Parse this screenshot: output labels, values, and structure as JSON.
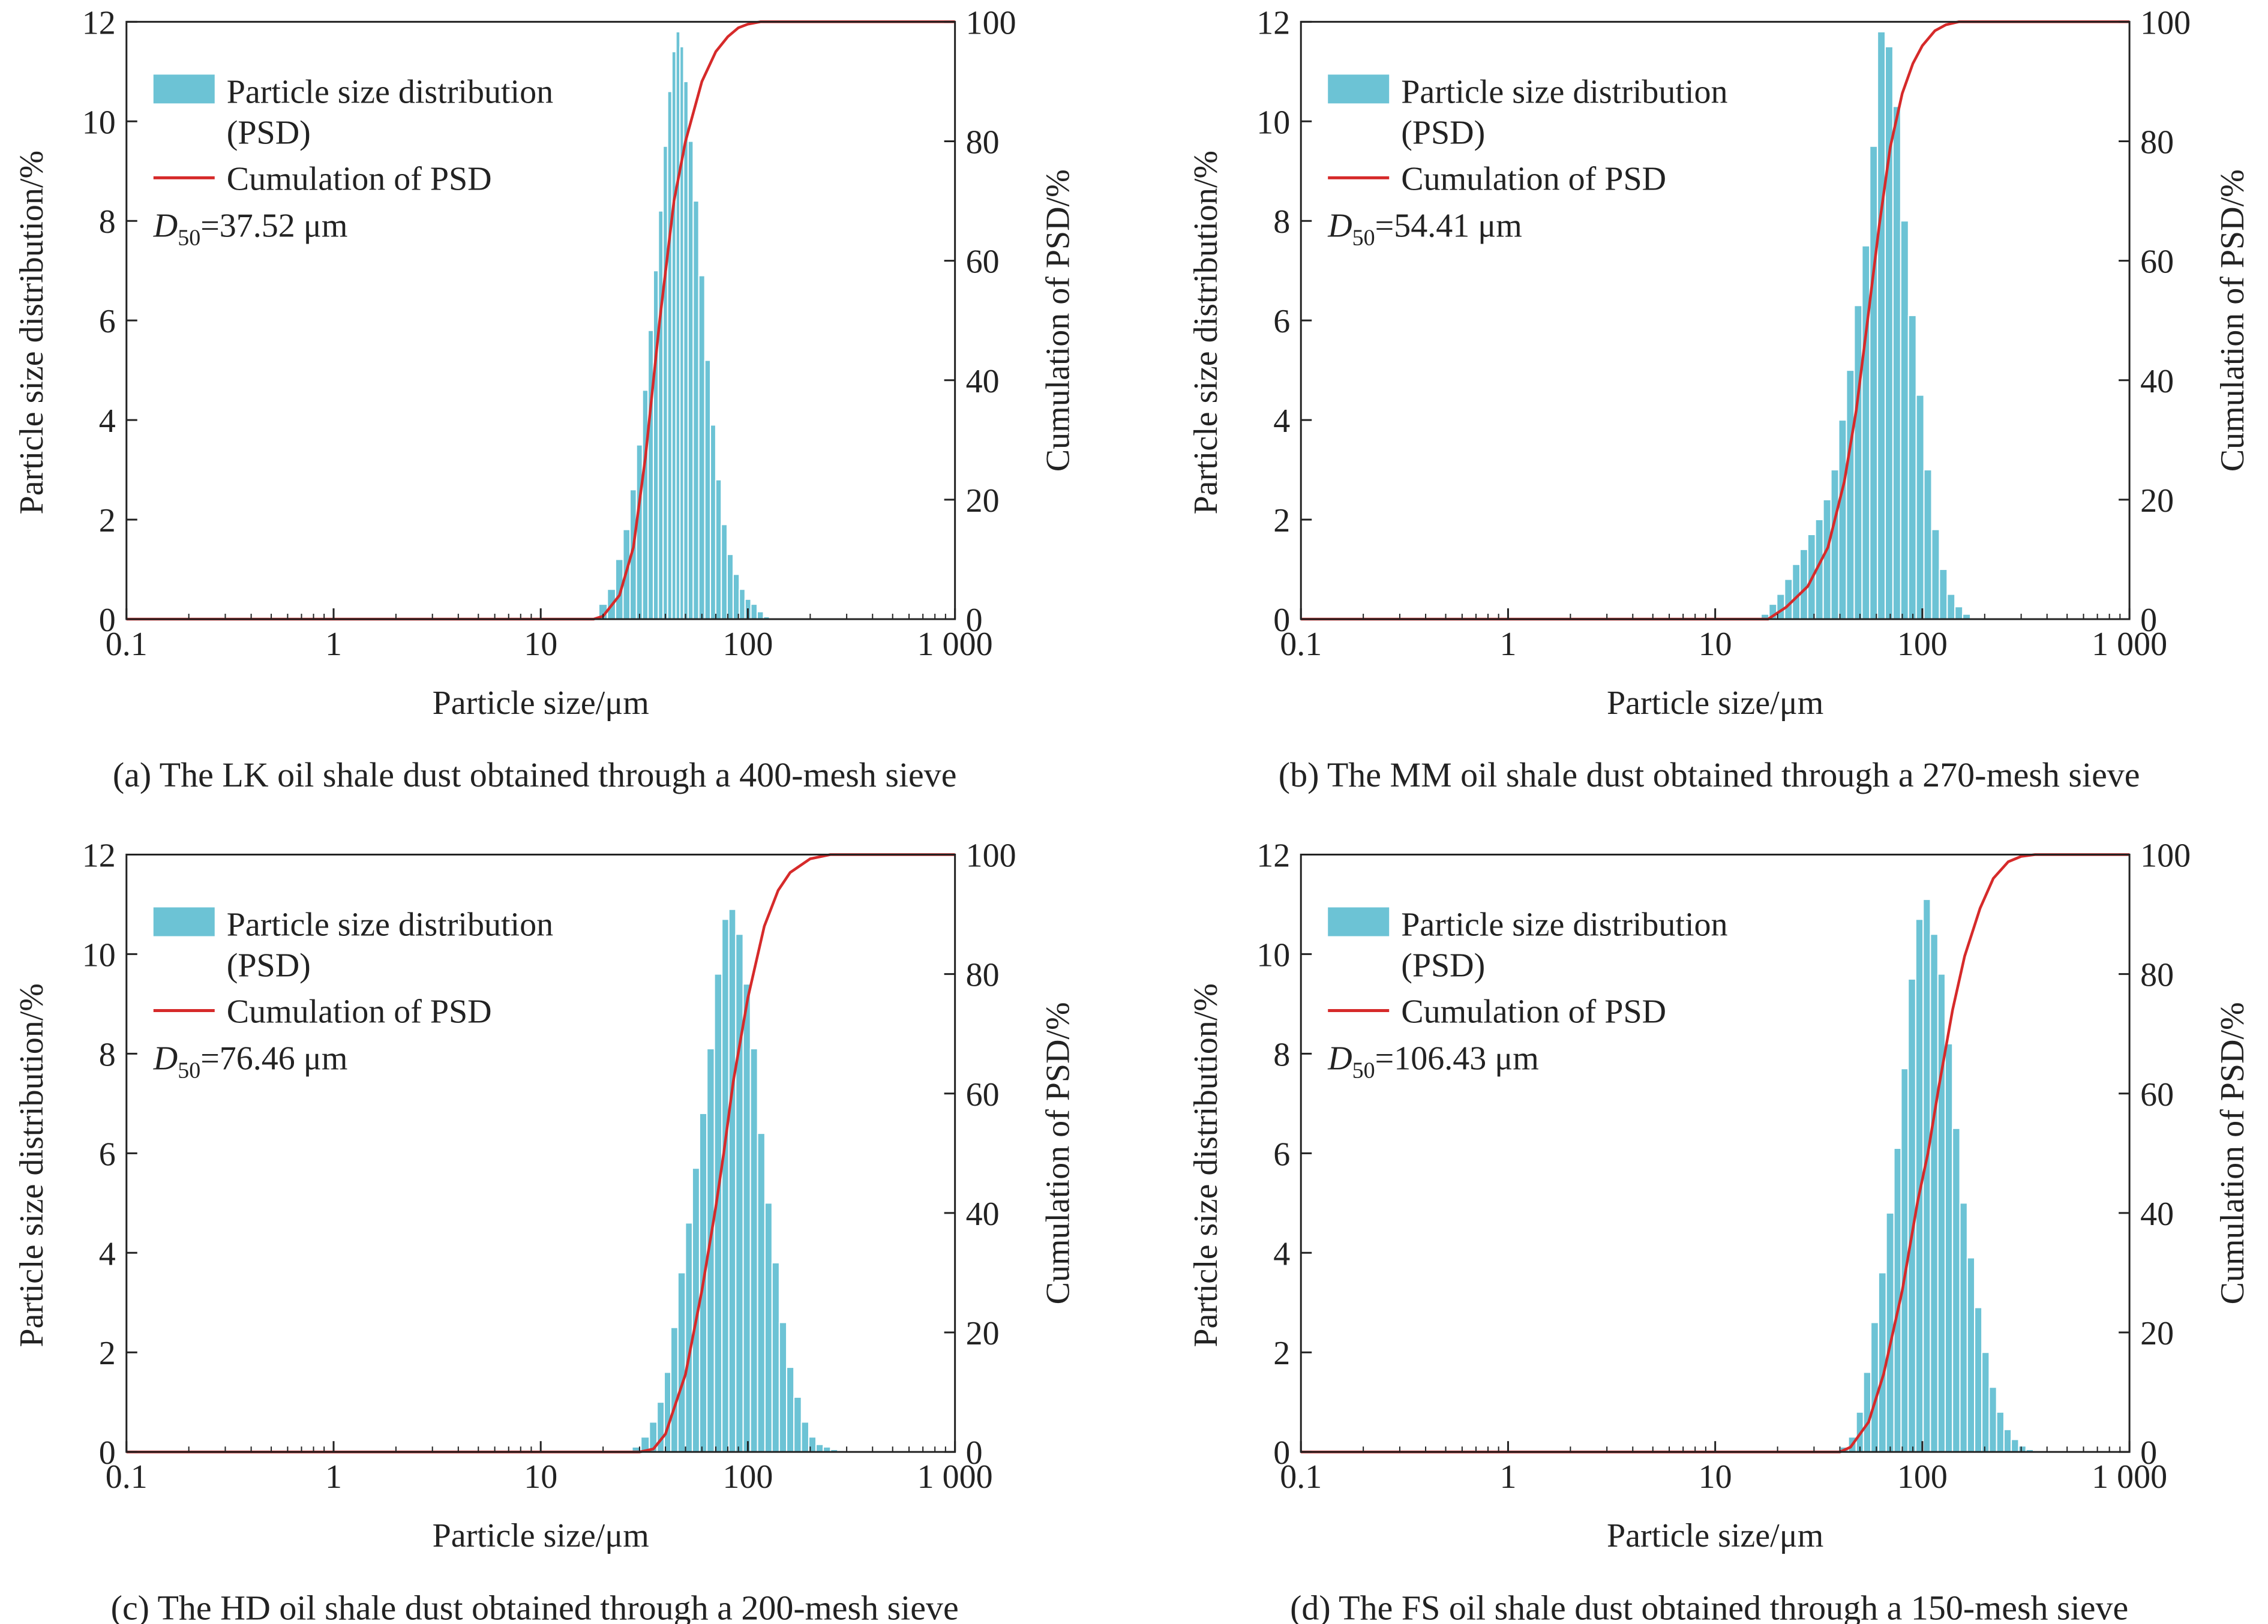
{
  "figure": {
    "colors": {
      "bar": "#6cc3d5",
      "bar_edge": "#ffffff",
      "cumulative_line": "#d62a2a",
      "axis": "#222222"
    },
    "legend": {
      "psd_line1": "Particle size distribution",
      "psd_line2": "(PSD)",
      "cumulative": "Cumulation of PSD"
    },
    "x_ticks": [
      "0.1",
      "1",
      "10",
      "100",
      "1 000"
    ],
    "y_left_ticks": [
      "0",
      "2",
      "4",
      "6",
      "8",
      "10",
      "12"
    ],
    "y_right_ticks": [
      "0",
      "20",
      "40",
      "60",
      "80",
      "100"
    ]
  },
  "panels": [
    {
      "caption": "(a) The LK oil shale dust obtained through a 400-mesh sieve",
      "d50_symbol": "D",
      "d50_sub": "50",
      "d50_value": "=37.52 μm"
    },
    {
      "caption": "(b) The MM oil shale dust obtained through a 270-mesh sieve",
      "d50_symbol": "D",
      "d50_sub": "50",
      "d50_value": "=54.41 μm"
    },
    {
      "caption": "(c) The HD oil shale dust obtained through a 200-mesh sieve",
      "d50_symbol": "D",
      "d50_sub": "50",
      "d50_value": "=76.46 μm"
    },
    {
      "caption": "(d) The FS oil shale dust obtained through a 150-mesh sieve",
      "d50_symbol": "D",
      "d50_sub": "50",
      "d50_value": "=106.43 μm"
    }
  ],
  "chart_data": [
    {
      "type": "bar",
      "xlabel": "Particle size/μm",
      "ylabel": "Particle size distribution/%",
      "y2label": "Cumulation of PSD/%",
      "xscale": "log",
      "xlim": [
        0.1,
        1000
      ],
      "ylim": [
        0,
        12
      ],
      "y2lim": [
        0,
        100
      ],
      "legend_position": "top-left",
      "series": [
        {
          "name": "Particle size distribution (PSD)",
          "type": "bar",
          "x": [
            20,
            22,
            24,
            26,
            28,
            30,
            32,
            34,
            36,
            38,
            40,
            42,
            44,
            46,
            48,
            50,
            53,
            56,
            60,
            64,
            68,
            72,
            77,
            82,
            88,
            94,
            100,
            107,
            115,
            123
          ],
          "values": [
            0.3,
            0.6,
            1.2,
            1.8,
            2.6,
            3.5,
            4.6,
            5.8,
            7.0,
            8.2,
            9.5,
            10.6,
            11.4,
            11.8,
            11.5,
            10.8,
            9.6,
            8.4,
            6.9,
            5.2,
            3.9,
            2.8,
            1.9,
            1.3,
            0.9,
            0.6,
            0.4,
            0.3,
            0.15,
            0.05
          ]
        },
        {
          "name": "Cumulation of PSD",
          "type": "line",
          "x": [
            0.1,
            18,
            20,
            24,
            28,
            32,
            37.52,
            44,
            50,
            60,
            70,
            80,
            90,
            100,
            115,
            130,
            1000
          ],
          "values": [
            0,
            0,
            0.5,
            4,
            12,
            27,
            50,
            70,
            80,
            90,
            95,
            97.5,
            99,
            99.6,
            100,
            100,
            100
          ]
        }
      ]
    },
    {
      "type": "bar",
      "xlabel": "Particle size/μm",
      "ylabel": "Particle size distribution/%",
      "y2label": "Cumulation of PSD/%",
      "xscale": "log",
      "xlim": [
        0.1,
        1000
      ],
      "ylim": [
        0,
        12
      ],
      "y2lim": [
        0,
        100
      ],
      "legend_position": "top-left",
      "series": [
        {
          "name": "Particle size distribution (PSD)",
          "type": "bar",
          "x": [
            17.4,
            19.0,
            20.7,
            22.6,
            24.6,
            26.8,
            29.2,
            31.8,
            34.7,
            37.8,
            41.2,
            44.9,
            49.0,
            53.4,
            58.2,
            63.4,
            69.1,
            75.3,
            82.1,
            89.5,
            97.5,
            106.3,
            115.8,
            126.3,
            137.6,
            150.0,
            163.5
          ],
          "values": [
            0.1,
            0.3,
            0.5,
            0.8,
            1.1,
            1.4,
            1.7,
            2.0,
            2.4,
            3.0,
            4.0,
            5.0,
            6.3,
            7.5,
            9.5,
            11.8,
            11.5,
            10.3,
            8.0,
            6.1,
            4.5,
            3.0,
            1.8,
            1.0,
            0.5,
            0.25,
            0.1
          ]
        },
        {
          "name": "Cumulation of PSD",
          "type": "line",
          "x": [
            0.1,
            18,
            22,
            28,
            35,
            42,
            48,
            54.41,
            62,
            70,
            80,
            90,
            100,
            115,
            130,
            150,
            180,
            1000
          ],
          "values": [
            0,
            0,
            2,
            5.5,
            12,
            23,
            35,
            50,
            66,
            79,
            88,
            93,
            96,
            98.5,
            99.5,
            100,
            100,
            100
          ]
        }
      ]
    },
    {
      "type": "bar",
      "xlabel": "Particle size/μm",
      "ylabel": "Particle size distribution/%",
      "y2label": "Cumulation of PSD/%",
      "xscale": "log",
      "xlim": [
        0.1,
        1000
      ],
      "ylim": [
        0,
        12
      ],
      "y2lim": [
        0,
        100
      ],
      "legend_position": "top-left",
      "series": [
        {
          "name": "Particle size distribution (PSD)",
          "type": "bar",
          "x": [
            29,
            32,
            35,
            38,
            41,
            44,
            48,
            52,
            56,
            61,
            66,
            72,
            78,
            84,
            91,
            99,
            107,
            116,
            126,
            136,
            148,
            160,
            174,
            189,
            205,
            222,
            241,
            261,
            283
          ],
          "values": [
            0.1,
            0.3,
            0.6,
            1.0,
            1.6,
            2.5,
            3.6,
            4.6,
            5.7,
            6.8,
            8.1,
            9.6,
            10.7,
            10.9,
            10.4,
            9.4,
            8.1,
            6.4,
            5.0,
            3.8,
            2.6,
            1.7,
            1.1,
            0.6,
            0.3,
            0.15,
            0.1,
            0.05,
            0.03
          ]
        },
        {
          "name": "Cumulation of PSD",
          "type": "line",
          "x": [
            0.1,
            30,
            35,
            40,
            50,
            60,
            70,
            76.46,
            85,
            100,
            120,
            140,
            160,
            200,
            250,
            300,
            1000
          ],
          "values": [
            0,
            0,
            0.5,
            3,
            13,
            27,
            41,
            50,
            62,
            76,
            88,
            94,
            97,
            99.3,
            100,
            100,
            100
          ]
        }
      ]
    },
    {
      "type": "bar",
      "xlabel": "Particle size/μm",
      "ylabel": "Particle size distribution/%",
      "y2label": "Cumulation of PSD/%",
      "xscale": "log",
      "xlim": [
        0.1,
        1000
      ],
      "ylim": [
        0,
        12
      ],
      "y2lim": [
        0,
        100
      ],
      "legend_position": "top-left",
      "series": [
        {
          "name": "Particle size distribution (PSD)",
          "type": "bar",
          "x": [
            42,
            46,
            50,
            54,
            59,
            64,
            70,
            76,
            82,
            89,
            97,
            105,
            114,
            124,
            134,
            146,
            158,
            172,
            186,
            202,
            219,
            238,
            258,
            280,
            304,
            330
          ],
          "values": [
            0.1,
            0.3,
            0.8,
            1.6,
            2.6,
            3.6,
            4.8,
            6.1,
            7.7,
            9.5,
            10.7,
            11.1,
            10.4,
            9.6,
            8.2,
            6.5,
            5.0,
            3.9,
            2.9,
            2.0,
            1.3,
            0.8,
            0.45,
            0.25,
            0.12,
            0.05
          ]
        },
        {
          "name": "Cumulation of PSD",
          "type": "line",
          "x": [
            0.1,
            40,
            45,
            55,
            65,
            80,
            95,
            106.43,
            120,
            140,
            160,
            190,
            220,
            260,
            300,
            350,
            1000
          ],
          "values": [
            0,
            0,
            0.8,
            5,
            13,
            27,
            42,
            50,
            61,
            74,
            83,
            91,
            96,
            98.8,
            99.7,
            100,
            100
          ]
        }
      ]
    }
  ]
}
